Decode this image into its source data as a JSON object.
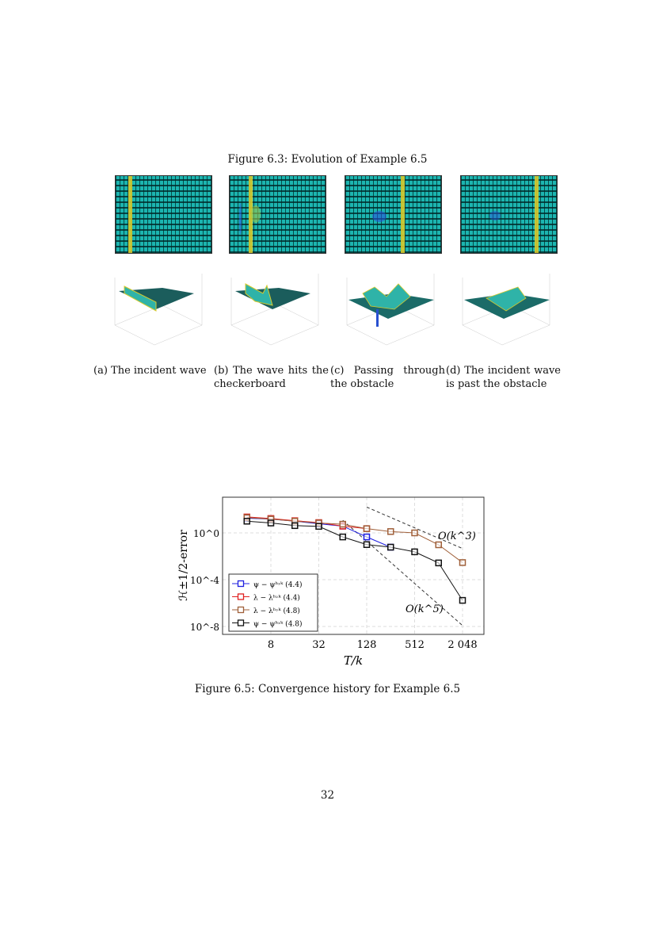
{
  "figure63": {
    "title": "Figure 6.3: Evolution of Example 6.5",
    "subcaptions": [
      "(a) The incident wave",
      "(b) The wave hits the checkerboard",
      "(c) Passing through the obstacle",
      "(d) The incident wave is past the obstacle"
    ],
    "colors": {
      "background": "#1cb5b0",
      "wave": "#d7c92c",
      "grid": "#003030"
    }
  },
  "figure65": {
    "caption": "Figure 6.5: Convergence history for Example 6.5"
  },
  "chart_data": {
    "type": "line",
    "xlabel": "T/k",
    "ylabel": "H^{±1/2}-error",
    "xscale": "log2",
    "yscale": "log10",
    "xlim": [
      3,
      2900
    ],
    "ylim": [
      1e-09,
      1000
    ],
    "xticks": [
      8,
      32,
      128,
      512,
      2048
    ],
    "xtick_labels": [
      "8",
      "32",
      "128",
      "512",
      "2 048"
    ],
    "yticks": [
      1,
      0.0001,
      1e-08
    ],
    "ytick_labels": [
      "10^0",
      "10^-4",
      "10^-8"
    ],
    "grid": true,
    "legend": "bottom-left",
    "series": [
      {
        "name": "ψ − ψ^{h,k} (4.4)",
        "color": "#2020e0",
        "x": [
          4,
          8,
          16,
          32,
          64,
          128,
          256
        ],
        "y": [
          18,
          15,
          10,
          6,
          3.8,
          0.45,
          0.06
        ]
      },
      {
        "name": "λ − λ^{h,k} (4.4)",
        "color": "#e02020",
        "x": [
          4,
          8,
          16,
          32,
          64,
          128
        ],
        "y": [
          23,
          17,
          11,
          7.6,
          3.8,
          2.3
        ]
      },
      {
        "name": "λ − λ^{h,k} (4.8)",
        "color": "#a0603a",
        "x": [
          4,
          8,
          16,
          32,
          64,
          128,
          256,
          512,
          1024,
          2048
        ],
        "y": [
          20,
          15,
          10,
          7,
          5.5,
          2.3,
          1.3,
          1,
          0.096,
          0.0029
        ]
      },
      {
        "name": "ψ − ψ^{h,k} (4.8)",
        "color": "#111111",
        "x": [
          4,
          8,
          16,
          32,
          64,
          128,
          256,
          512,
          1024,
          2048
        ],
        "y": [
          10,
          7,
          4.2,
          3.6,
          0.45,
          0.1,
          0.06,
          0.024,
          0.0027,
          1.7e-06
        ]
      }
    ],
    "reference_lines": [
      {
        "label": "O(k^3)",
        "x": [
          128,
          2048
        ],
        "y": [
          160,
          0.046
        ]
      },
      {
        "label": "O(k^5)",
        "x": [
          64,
          2048
        ],
        "y": [
          12,
          1.2e-08
        ]
      }
    ]
  },
  "page_number": "32"
}
